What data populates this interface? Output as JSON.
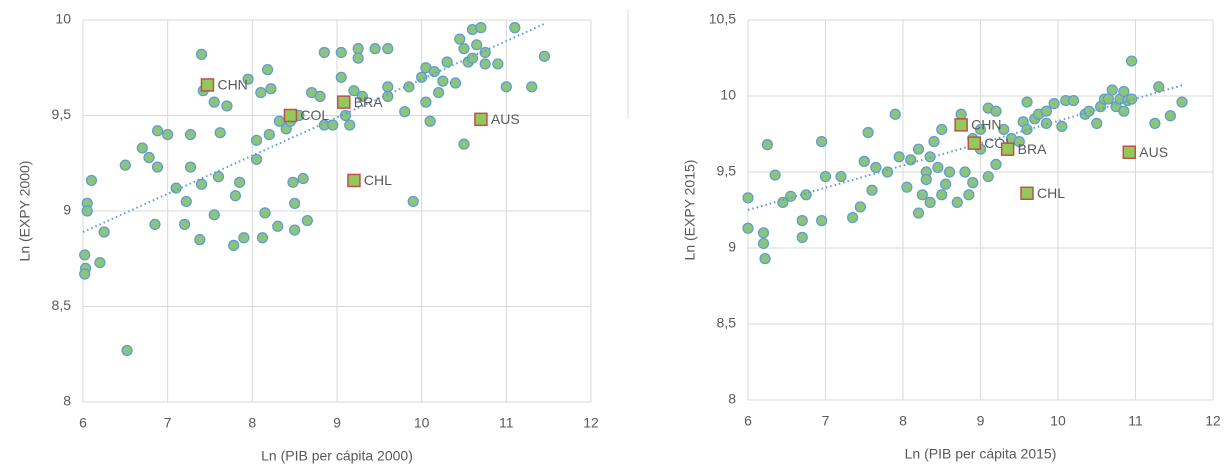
{
  "chart_data": [
    {
      "type": "scatter",
      "ylabel": "Ln (EXPY 2000)",
      "xlabel": "Ln (PIB per cápita 2000)",
      "xlim": [
        6,
        12
      ],
      "xticks": [
        6,
        7,
        8,
        9,
        10,
        11,
        12
      ],
      "ylim": [
        8,
        10
      ],
      "yticks": [
        8,
        {
          "value": 8.5,
          "label": "8,5"
        },
        9,
        {
          "value": 9.5,
          "label": "9,5"
        },
        10
      ],
      "grid": true,
      "color": "#8cc47c",
      "edge_color": "#5b9bd5",
      "x": [
        6.05,
        6.05,
        6.02,
        6.03,
        6.02,
        6.1,
        6.2,
        6.25,
        6.5,
        6.52,
        6.7,
        6.78,
        6.85,
        6.88,
        6.88,
        7.0,
        7.1,
        7.2,
        7.22,
        7.27,
        7.27,
        7.38,
        7.4,
        7.4,
        7.42,
        7.55,
        7.55,
        7.6,
        7.62,
        7.7,
        7.78,
        7.8,
        7.85,
        7.9,
        7.95,
        8.05,
        8.05,
        8.1,
        8.12,
        8.15,
        8.18,
        8.2,
        8.22,
        8.3,
        8.32,
        8.4,
        8.45,
        8.48,
        8.5,
        8.5,
        8.55,
        8.6,
        8.65,
        8.7,
        8.8,
        8.85,
        8.85,
        8.95,
        9.05,
        9.05,
        9.1,
        9.15,
        9.2,
        9.25,
        9.25,
        9.3,
        9.45,
        9.6,
        9.6,
        9.6,
        9.8,
        9.85,
        9.9,
        10.0,
        10.05,
        10.05,
        10.1,
        10.15,
        10.2,
        10.25,
        10.3,
        10.4,
        10.45,
        10.5,
        10.5,
        10.55,
        10.6,
        10.6,
        10.65,
        10.7,
        10.75,
        10.75,
        10.9,
        11.0,
        11.1,
        11.3,
        11.45
      ],
      "y": [
        9.04,
        9.0,
        8.77,
        8.7,
        8.67,
        9.16,
        8.73,
        8.89,
        9.24,
        8.27,
        9.33,
        9.28,
        8.93,
        9.42,
        9.23,
        9.4,
        9.12,
        8.93,
        9.05,
        9.23,
        9.4,
        8.85,
        9.14,
        9.82,
        9.63,
        9.57,
        8.98,
        9.18,
        9.41,
        9.55,
        8.82,
        9.08,
        9.15,
        8.86,
        9.69,
        9.27,
        9.37,
        9.62,
        8.86,
        8.99,
        9.74,
        9.4,
        9.64,
        8.92,
        9.47,
        9.43,
        9.47,
        9.15,
        9.04,
        8.9,
        9.5,
        9.17,
        8.95,
        9.62,
        9.6,
        9.83,
        9.45,
        9.45,
        9.83,
        9.7,
        9.5,
        9.45,
        9.63,
        9.85,
        9.8,
        9.6,
        9.85,
        9.85,
        9.65,
        9.6,
        9.52,
        9.65,
        9.05,
        9.7,
        9.75,
        9.57,
        9.47,
        9.73,
        9.62,
        9.68,
        9.78,
        9.67,
        9.9,
        9.35,
        9.85,
        9.78,
        9.95,
        9.8,
        9.87,
        9.96,
        9.77,
        9.83,
        9.77,
        9.65,
        9.96,
        9.65,
        9.81
      ],
      "trendline": {
        "x": [
          6,
          11.45
        ],
        "y": [
          8.89,
          9.98
        ]
      },
      "annotations": [
        {
          "text": "CHN",
          "x": 7.47,
          "y": 9.66
        },
        {
          "text": "COL",
          "x": 8.45,
          "y": 9.5
        },
        {
          "text": "BRA",
          "x": 9.08,
          "y": 9.57
        },
        {
          "text": "AUS",
          "x": 10.7,
          "y": 9.48
        },
        {
          "text": "CHL",
          "x": 9.2,
          "y": 9.16
        }
      ]
    },
    {
      "type": "scatter",
      "ylabel": "Ln (EXPY 2015)",
      "xlabel": "Ln (PIB per cápita 2015)",
      "xlim": [
        6,
        12
      ],
      "xticks": [
        6,
        7,
        8,
        9,
        10,
        11,
        12
      ],
      "ylim": [
        8,
        10.5
      ],
      "yticks": [
        8,
        {
          "value": 8.5,
          "label": "8,5"
        },
        9,
        {
          "value": 9.5,
          "label": "9,5"
        },
        10,
        {
          "value": 10.5,
          "label": "10,5"
        }
      ],
      "grid": true,
      "color": "#8cc47c",
      "edge_color": "#5b9bd5",
      "x": [
        6.0,
        6.0,
        6.2,
        6.2,
        6.22,
        6.25,
        6.35,
        6.45,
        6.55,
        6.7,
        6.7,
        6.75,
        6.95,
        6.95,
        7.0,
        7.2,
        7.35,
        7.45,
        7.5,
        7.55,
        7.6,
        7.65,
        7.8,
        7.9,
        7.95,
        8.05,
        8.1,
        8.2,
        8.2,
        8.25,
        8.3,
        8.3,
        8.35,
        8.35,
        8.4,
        8.45,
        8.5,
        8.5,
        8.55,
        8.6,
        8.7,
        8.75,
        8.8,
        8.85,
        8.9,
        8.9,
        9.0,
        9.0,
        9.1,
        9.1,
        9.2,
        9.2,
        9.3,
        9.4,
        9.5,
        9.55,
        9.6,
        9.6,
        9.7,
        9.75,
        9.85,
        9.85,
        9.95,
        10.05,
        10.1,
        10.2,
        10.35,
        10.4,
        10.5,
        10.55,
        10.6,
        10.65,
        10.7,
        10.75,
        10.8,
        10.85,
        10.85,
        10.9,
        10.95,
        10.95,
        11.25,
        11.3,
        11.45,
        11.6
      ],
      "y": [
        9.33,
        9.13,
        9.1,
        9.03,
        8.93,
        9.68,
        9.48,
        9.3,
        9.34,
        9.18,
        9.07,
        9.35,
        9.7,
        9.18,
        9.47,
        9.47,
        9.2,
        9.27,
        9.57,
        9.76,
        9.38,
        9.53,
        9.5,
        9.88,
        9.6,
        9.4,
        9.58,
        9.65,
        9.23,
        9.35,
        9.5,
        9.45,
        9.6,
        9.3,
        9.7,
        9.53,
        9.35,
        9.78,
        9.42,
        9.5,
        9.3,
        9.88,
        9.5,
        9.35,
        9.43,
        9.72,
        9.78,
        9.65,
        9.47,
        9.92,
        9.9,
        9.55,
        9.78,
        9.72,
        9.7,
        9.83,
        9.96,
        9.78,
        9.85,
        9.88,
        9.9,
        9.82,
        9.95,
        9.8,
        9.97,
        9.97,
        9.88,
        9.9,
        9.82,
        9.93,
        9.98,
        9.98,
        10.04,
        9.93,
        9.98,
        10.03,
        9.9,
        9.97,
        10.23,
        9.98,
        9.82,
        10.06,
        9.87,
        9.96
      ],
      "trendline": {
        "x": [
          6,
          11.6
        ],
        "y": [
          9.25,
          10.07
        ]
      },
      "annotations": [
        {
          "text": "CHN",
          "x": 8.75,
          "y": 9.81
        },
        {
          "text": "COL",
          "x": 8.92,
          "y": 9.69
        },
        {
          "text": "BRA",
          "x": 9.35,
          "y": 9.65
        },
        {
          "text": "AUS",
          "x": 10.92,
          "y": 9.63
        },
        {
          "text": "CHL",
          "x": 9.6,
          "y": 9.36
        }
      ]
    }
  ]
}
